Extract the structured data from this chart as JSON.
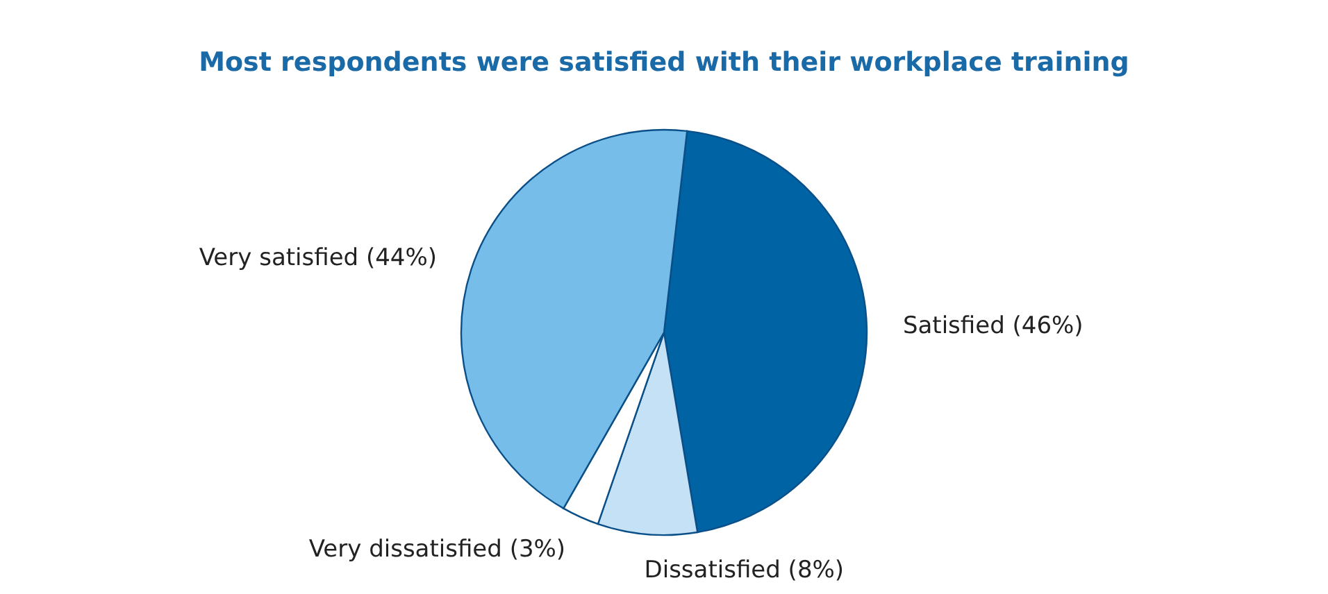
{
  "chart_data": {
    "type": "pie",
    "title": "Most respondents were satisfied with their workplace training",
    "categories": [
      "Satisfied (46%)",
      "Dissatisfied (8%)",
      "Very dissatisfied (3%)",
      "Very satisfied (44%)"
    ],
    "values": [
      46,
      8,
      3,
      44
    ],
    "colors": [
      "#0064a4",
      "#c5e1f5",
      "#ffffff",
      "#76bee9"
    ],
    "legend": false
  }
}
